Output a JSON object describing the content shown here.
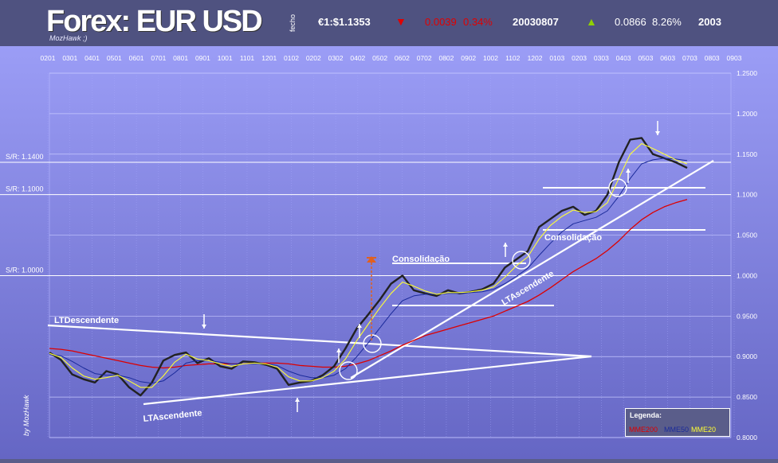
{
  "header": {
    "title": "Forex: EUR USD",
    "logo": "MozHawk ;)",
    "fecho_label": "fecho",
    "price": "€1:$1.1353",
    "down_icon": "triangle-down-icon",
    "change_abs": "0.0039",
    "change_pct": "0.34%",
    "date": "20030807",
    "up_icon": "triangle-up-icon",
    "year_change_abs": "0.0866",
    "year_change_pct": "8.26%",
    "year": "2003"
  },
  "byline": "by MozHawk",
  "colors": {
    "background": "#5a5d8a",
    "plot_top": "#9a9cf4",
    "plot_bottom": "#6a6cc8",
    "price": "#222222",
    "mme200": "#dd0000",
    "mme50": "#1a2a9a",
    "mme20": "#ffff33",
    "trendline": "#ffffff",
    "target_arrow": "#e06020"
  },
  "chart_data": {
    "type": "line",
    "x_tick_labels": [
      "0201",
      "0301",
      "0401",
      "0501",
      "0601",
      "0701",
      "0801",
      "0901",
      "1001",
      "1101",
      "1201",
      "0102",
      "0202",
      "0302",
      "0402",
      "0502",
      "0602",
      "0702",
      "0802",
      "0902",
      "1002",
      "1102",
      "1202",
      "0103",
      "0203",
      "0303",
      "0403",
      "0503",
      "0603",
      "0703",
      "0803",
      "0903"
    ],
    "y_ticks": [
      0.8,
      0.85,
      0.9,
      0.95,
      1.0,
      1.05,
      1.1,
      1.15,
      1.2,
      1.25
    ],
    "y_tick_labels": [
      "0.8000",
      "0.8500",
      "0.9000",
      "0.9500",
      "1.0000",
      "1.0500",
      "1.1000",
      "1.1500",
      "1.2000",
      "1.2500"
    ],
    "ylim": [
      0.8,
      1.25
    ],
    "grid": true,
    "sr_levels": [
      {
        "label": "S/R: 1.1400",
        "value": 1.14
      },
      {
        "label": "S/R: 1.1000",
        "value": 1.1
      },
      {
        "label": "S/R: 1.0000",
        "value": 1.0
      }
    ],
    "series": [
      {
        "name": "EUR/USD",
        "color": "#222222",
        "values": [
          0.905,
          0.896,
          0.878,
          0.872,
          0.868,
          0.882,
          0.878,
          0.862,
          0.852,
          0.868,
          0.895,
          0.902,
          0.905,
          0.892,
          0.898,
          0.888,
          0.885,
          0.894,
          0.893,
          0.89,
          0.885,
          0.865,
          0.868,
          0.87,
          0.877,
          0.888,
          0.91,
          0.935,
          0.952,
          0.97,
          0.99,
          1.0,
          0.982,
          0.978,
          0.975,
          0.982,
          0.978,
          0.98,
          0.983,
          0.99,
          1.01,
          1.02,
          1.03,
          1.06,
          1.07,
          1.08,
          1.085,
          1.075,
          1.08,
          1.1,
          1.14,
          1.168,
          1.17,
          1.15,
          1.145,
          1.14,
          1.133
        ]
      },
      {
        "name": "MME20",
        "color": "#ffff33",
        "values": [
          0.904,
          0.899,
          0.886,
          0.876,
          0.872,
          0.874,
          0.877,
          0.87,
          0.862,
          0.862,
          0.876,
          0.893,
          0.903,
          0.897,
          0.895,
          0.891,
          0.888,
          0.891,
          0.892,
          0.891,
          0.887,
          0.875,
          0.87,
          0.87,
          0.874,
          0.882,
          0.897,
          0.92,
          0.94,
          0.96,
          0.978,
          0.992,
          0.987,
          0.981,
          0.977,
          0.979,
          0.979,
          0.98,
          0.982,
          0.986,
          0.998,
          1.012,
          1.023,
          1.045,
          1.062,
          1.073,
          1.081,
          1.078,
          1.079,
          1.09,
          1.12,
          1.15,
          1.163,
          1.157,
          1.15,
          1.143,
          1.138
        ]
      },
      {
        "name": "MME50",
        "color": "#1a2a9a",
        "values": [
          0.903,
          0.901,
          0.894,
          0.886,
          0.879,
          0.877,
          0.877,
          0.874,
          0.869,
          0.867,
          0.87,
          0.88,
          0.892,
          0.895,
          0.895,
          0.893,
          0.891,
          0.891,
          0.891,
          0.891,
          0.889,
          0.882,
          0.877,
          0.874,
          0.874,
          0.877,
          0.885,
          0.9,
          0.917,
          0.935,
          0.953,
          0.969,
          0.975,
          0.977,
          0.977,
          0.978,
          0.978,
          0.979,
          0.98,
          0.983,
          0.99,
          0.999,
          1.009,
          1.025,
          1.04,
          1.054,
          1.064,
          1.068,
          1.072,
          1.08,
          1.098,
          1.12,
          1.138,
          1.143,
          1.145,
          1.144,
          1.142
        ]
      },
      {
        "name": "MME200",
        "color": "#dd0000",
        "values": [
          0.91,
          0.909,
          0.907,
          0.904,
          0.901,
          0.898,
          0.895,
          0.892,
          0.889,
          0.887,
          0.886,
          0.887,
          0.889,
          0.89,
          0.891,
          0.891,
          0.891,
          0.891,
          0.892,
          0.892,
          0.892,
          0.891,
          0.889,
          0.888,
          0.887,
          0.887,
          0.888,
          0.891,
          0.895,
          0.901,
          0.907,
          0.914,
          0.92,
          0.926,
          0.93,
          0.934,
          0.938,
          0.942,
          0.946,
          0.95,
          0.956,
          0.962,
          0.968,
          0.976,
          0.985,
          0.995,
          1.005,
          1.013,
          1.021,
          1.031,
          1.043,
          1.057,
          1.069,
          1.078,
          1.085,
          1.09,
          1.094
        ]
      }
    ],
    "annotations": [
      "LTDescendente",
      "LTAscendente",
      "Consolidação",
      "LTAscendente",
      "Consolidação"
    ],
    "legend": {
      "title": "Legenda:",
      "items": [
        {
          "label": "MME200",
          "color": "#dd0000"
        },
        {
          "label": "MME50",
          "color": "#1a2a9a"
        },
        {
          "label": "MME20",
          "color": "#ffff33"
        }
      ],
      "placement": "bottom-right"
    }
  }
}
